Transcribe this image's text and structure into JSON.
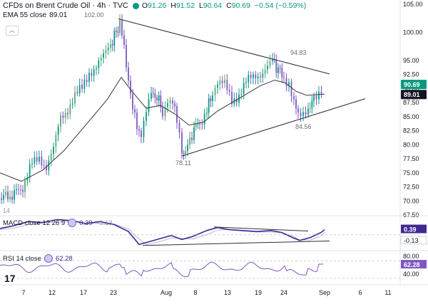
{
  "header": {
    "title": "CFDs on Brent Crude Oil · 4h · TVC",
    "status_color": "#089981",
    "ohlc": [
      {
        "k": "O",
        "v": "91.26"
      },
      {
        "k": "H",
        "v": "91.52"
      },
      {
        "k": "L",
        "v": "90.64"
      },
      {
        "k": "C",
        "v": "90.69"
      }
    ],
    "change": "−0.54 (−0.59%)"
  },
  "ema": {
    "label": "EMA 55 close",
    "value": "89.01"
  },
  "collapse_icon": "chevron-up-icon",
  "price_pane": {
    "tag_price": "90.69",
    "tag_ema": "89.01",
    "tag_price_color": "#089981",
    "tag_ema_color": "#131722",
    "y_ticks": [
      "105.00",
      "100.00",
      "95.00",
      "92.50",
      "90.00",
      "87.50",
      "85.00",
      "82.50",
      "80.00",
      "77.50",
      "75.00",
      "72.50",
      "70.00",
      "67.50"
    ],
    "corner_label": "14"
  },
  "macd": {
    "label": "MACD close 12 26 9",
    "macd_value": "0.39",
    "signal_value": "−0.13",
    "tag_macd": "0.39",
    "tag_signal": "-0.13",
    "macd_color": "#3f2a8f",
    "signal_color": "#b9b2d6"
  },
  "rsi": {
    "label": "RSI 14 close",
    "value": "62.28",
    "tag": "62.28",
    "y_ticks": [
      "80.00",
      "40.00"
    ],
    "color": "#7e57c2"
  },
  "x_axis": {
    "ticks": [
      "7",
      "12",
      "17",
      "23",
      "Aug",
      "8",
      "13",
      "19",
      "24",
      "Sep",
      "6",
      "11"
    ]
  },
  "chart_data": {
    "type": "line",
    "title": "CFDs on Brent Crude Oil · 4h · TVC",
    "ylim": [
      67.5,
      105
    ],
    "x": [
      "7",
      "12",
      "17",
      "23",
      "Aug",
      "8",
      "13",
      "19",
      "24",
      "Sep",
      "6",
      "11"
    ],
    "series": [
      {
        "name": "EMA 55 close",
        "last": 89.01
      },
      {
        "name": "Close",
        "last": 90.69
      }
    ],
    "annotations": [
      {
        "label": "102.00",
        "value": 102.0
      },
      {
        "label": "94.83",
        "value": 94.83
      },
      {
        "label": "78.11",
        "value": 78.11
      },
      {
        "label": "84.56",
        "value": 84.56
      }
    ],
    "pattern": "symmetrical triangle",
    "grid": false
  }
}
